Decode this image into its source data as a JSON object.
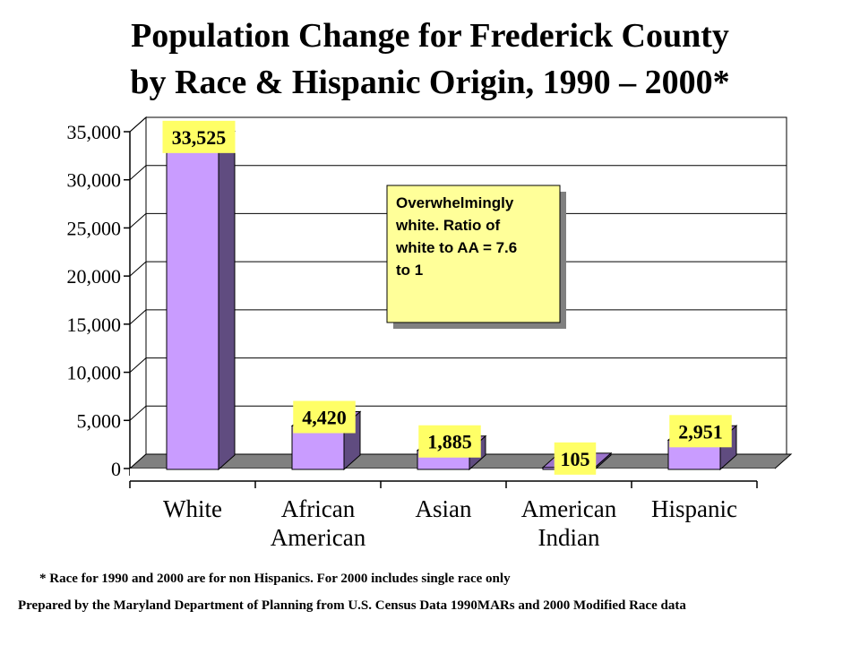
{
  "title_line1": "Population Change for Frederick County",
  "title_line2": "by Race & Hispanic Origin, 1990 – 2000*",
  "chart_data": {
    "type": "bar",
    "categories": [
      [
        "White"
      ],
      [
        "African",
        "American"
      ],
      [
        "Asian"
      ],
      [
        "American",
        "Indian"
      ],
      [
        "Hispanic"
      ]
    ],
    "values": [
      33525,
      4420,
      1885,
      105,
      2951
    ],
    "value_labels": [
      "33,525",
      "4,420",
      "1,885",
      "105",
      "2,951"
    ],
    "ylim": [
      0,
      35000
    ],
    "yticks": [
      "0",
      "5,000",
      "10,000",
      "15,000",
      "20,000",
      "25,000",
      "30,000",
      "35,000"
    ],
    "grid": true,
    "bar_color": "#c99cff",
    "label_color": "#ffff66",
    "annotation": "Overwhelmingly white. Ratio of white to AA = 7.6 to 1"
  },
  "footnote": "* Race for 1990 and 2000 are for non Hispanics. For 2000  includes single race only",
  "credit": "Prepared by the Maryland Department of Planning from U.S. Census Data 1990MARs and 2000 Modified Race data"
}
